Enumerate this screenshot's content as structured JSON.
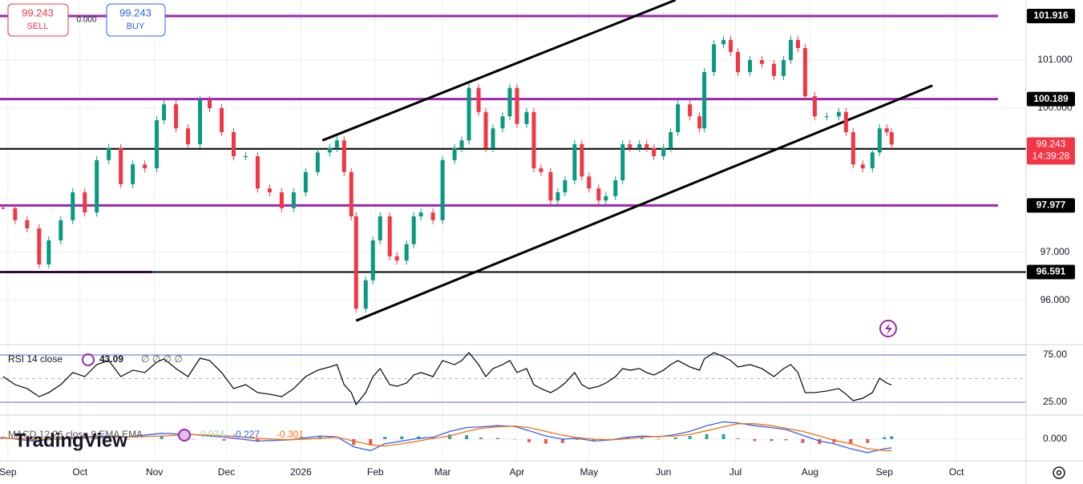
{
  "chart_data": [
    {
      "type": "candlestick",
      "xlim": [
        -3.3,
        424
      ],
      "ylim": [
        95.083,
        102.25
      ],
      "xticks": [
        {
          "value": 0,
          "label": "Sep"
        },
        {
          "value": 30,
          "label": "Oct"
        },
        {
          "value": 61,
          "label": "Nov"
        },
        {
          "value": 91,
          "label": "Dec"
        },
        {
          "value": 122,
          "label": "2026"
        },
        {
          "value": 153,
          "label": "Feb"
        },
        {
          "value": 181,
          "label": "Mar"
        },
        {
          "value": 212,
          "label": "Apr"
        },
        {
          "value": 242,
          "label": "May"
        },
        {
          "value": 273,
          "label": "Jun"
        },
        {
          "value": 303,
          "label": "Jul"
        },
        {
          "value": 334,
          "label": "Aug"
        },
        {
          "value": 365,
          "label": "Sep"
        },
        {
          "value": 395,
          "label": "Oct"
        }
      ],
      "yticks": [
        {
          "value": 101,
          "label": "101.000"
        },
        {
          "value": 100,
          "label": "100.000"
        },
        {
          "value": 97,
          "label": "97.000"
        },
        {
          "value": 96,
          "label": "96.000"
        }
      ],
      "grid": true,
      "x": [
        -2,
        3,
        8,
        13,
        17,
        22,
        27,
        32,
        37,
        42,
        47,
        52,
        57,
        62,
        65,
        70,
        75,
        80,
        84,
        89,
        94,
        99,
        104,
        109,
        114,
        119,
        124,
        129,
        134,
        137,
        140,
        143,
        145,
        149,
        152,
        155,
        159,
        162,
        166,
        169,
        172,
        177,
        181,
        186,
        189,
        192,
        196,
        199,
        202,
        206,
        209,
        212,
        216,
        219,
        222,
        226,
        229,
        232,
        236,
        239,
        242,
        246,
        249,
        253,
        256,
        259,
        263,
        266,
        269,
        273,
        276,
        279,
        284,
        288,
        290,
        294,
        298,
        301,
        304,
        309,
        314,
        319,
        323,
        326,
        329,
        332,
        336,
        341,
        346,
        349,
        352,
        356,
        360,
        363,
        366,
        368
      ],
      "series": [
        {
          "up_color": "#089981",
          "down_color": "#f23645",
          "values": [
            97.92,
            97.67,
            97.5,
            96.75,
            97.25,
            97.67,
            98.25,
            97.83,
            98.92,
            99.17,
            98.42,
            98.83,
            98.75,
            99.75,
            100.08,
            99.58,
            99.25,
            100.17,
            100.0,
            99.5,
            99.0,
            99.0,
            98.33,
            98.25,
            97.92,
            98.25,
            98.67,
            99.08,
            99.17,
            99.33,
            98.67,
            97.75,
            95.83,
            96.42,
            97.25,
            97.75,
            96.92,
            96.83,
            97.17,
            97.75,
            97.83,
            97.67,
            98.92,
            99.17,
            99.33,
            100.42,
            99.92,
            99.17,
            99.58,
            99.83,
            100.42,
            99.67,
            99.92,
            98.75,
            98.67,
            98.08,
            98.25,
            98.5,
            99.25,
            98.58,
            98.33,
            98.08,
            98.17,
            98.5,
            99.25,
            99.17,
            99.25,
            99.17,
            99.0,
            99.17,
            99.5,
            100.08,
            99.83,
            99.58,
            100.75,
            101.33,
            101.42,
            101.17,
            100.75,
            101.0,
            100.92,
            100.67,
            101.0,
            101.42,
            101.25,
            100.25,
            99.83,
            99.83,
            99.92,
            99.5,
            98.83,
            98.75,
            99.08,
            99.58,
            99.5,
            99.243
          ]
        }
      ],
      "last_price_color": "#f23645",
      "countdown": "14:39:28",
      "levels": [
        {
          "value": 101.916,
          "color": "#9c27b0"
        },
        {
          "value": 100.189,
          "color": "#9c27b0"
        },
        {
          "value": 97.977,
          "color": "#9c27b0"
        },
        {
          "value": 96.591,
          "color": "#9c27b0",
          "x": [
            -3.3,
            60
          ]
        },
        {
          "value": 99.153,
          "color": "#000000"
        },
        {
          "value": 96.591,
          "color": "#000000"
        }
      ],
      "trend_lines": [
        {
          "x": [
            131,
            278
          ],
          "y": [
            99.33,
            102.25
          ]
        },
        {
          "x": [
            145,
            385
          ],
          "y": [
            95.58,
            100.47
          ]
        }
      ],
      "trade_widget": {
        "sell_price": 99.243,
        "sell": "SELL",
        "spread": "0.000",
        "buy_price": 99.243,
        "buy": "BUY"
      }
    },
    {
      "type": "line",
      "title": "RSI 14 close",
      "extra": "∅ ∅ ∅ ∅",
      "ylim": [
        11.4,
        86
      ],
      "yticks": [
        {
          "value": 75,
          "label": "75.00"
        },
        {
          "value": 25,
          "label": "25.00"
        }
      ],
      "midline": 50,
      "band_color": "#5b6bd6",
      "series": [
        {
          "color": "#000000",
          "values": [
            52.1,
            43.6,
            39.4,
            30.9,
            35.2,
            43.6,
            56.4,
            52.1,
            64.8,
            69.1,
            52.1,
            58.9,
            56.4,
            67.4,
            70.8,
            60.6,
            52.1,
            71.6,
            69.1,
            56.4,
            39.4,
            43.6,
            35.2,
            33.5,
            30.9,
            39.4,
            52.1,
            58.9,
            62.3,
            64.8,
            43.6,
            35.2,
            22.5,
            35.2,
            52.1,
            60.6,
            43.6,
            41.9,
            45.3,
            53.8,
            56.4,
            52.1,
            69.1,
            64.8,
            69.1,
            77.5,
            64.8,
            52.1,
            60.6,
            64.8,
            69.1,
            56.4,
            60.6,
            43.6,
            39.4,
            35.2,
            39.4,
            45.3,
            56.4,
            43.6,
            39.4,
            41.9,
            45.3,
            52.1,
            60.6,
            58.9,
            60.6,
            56.4,
            53.8,
            58.9,
            64.8,
            69.1,
            62.3,
            58.9,
            70.8,
            77.5,
            73.3,
            69.1,
            62.3,
            64.8,
            60.6,
            52.1,
            60.6,
            64.8,
            56.4,
            35.2,
            35.2,
            36.9,
            39.4,
            33.5,
            26.7,
            29.2,
            35.2,
            50.4,
            45.3,
            43.09
          ]
        }
      ]
    },
    {
      "type": "macd",
      "title": "MACD 12 26 close 9 EMA EMA",
      "logo": "TradingView",
      "ylim": [
        -0.5625,
        0.625
      ],
      "yticks": [
        {
          "value": 0,
          "label": "0.000"
        }
      ],
      "x": [
        -3,
        10,
        23,
        37,
        50,
        64,
        77,
        90,
        104,
        117,
        130,
        137,
        144,
        151,
        157,
        164,
        171,
        177,
        184,
        191,
        197,
        204,
        211,
        217,
        224,
        231,
        237,
        244,
        251,
        258,
        264,
        271,
        278,
        284,
        291,
        298,
        304,
        311,
        318,
        324,
        331,
        338,
        344,
        351,
        358,
        365,
        368
      ],
      "histogram": {
        "up_color": "#26a69a",
        "down_color": "#ef5350",
        "values": [
          0.02,
          -0.05,
          0.02,
          0.04,
          0,
          0.07,
          0,
          -0.04,
          -0.07,
          0,
          0.06,
          0.01,
          -0.15,
          -0.15,
          0.06,
          0.07,
          0.07,
          0.03,
          0.12,
          0.1,
          0.04,
          0.03,
          -0.01,
          -0.08,
          -0.12,
          -0.1,
          -0.02,
          -0.05,
          0,
          0.04,
          0.03,
          -0.01,
          0.04,
          0.08,
          0.13,
          0.13,
          0.02,
          -0.05,
          -0.05,
          -0.03,
          -0.1,
          -0.13,
          -0.09,
          -0.13,
          -0.1,
          0.05,
          0.074
        ]
      },
      "series": [
        {
          "color": "#2962ff",
          "values": [
            0.05,
            -0.05,
            0.02,
            0.08,
            0.06,
            0.15,
            0.12,
            0.05,
            -0.05,
            -0.02,
            0.08,
            0.06,
            -0.2,
            -0.3,
            -0.12,
            -0.05,
            0.02,
            0.05,
            0.2,
            0.3,
            0.32,
            0.35,
            0.33,
            0.22,
            0.08,
            0,
            0.02,
            -0.05,
            -0.02,
            0.05,
            0.08,
            0.06,
            0.12,
            0.2,
            0.35,
            0.45,
            0.42,
            0.35,
            0.3,
            0.25,
            0.1,
            -0.05,
            -0.12,
            -0.25,
            -0.35,
            -0.25,
            -0.227
          ]
        },
        {
          "color": "#ff6d00",
          "values": [
            0.03,
            0,
            0,
            0.04,
            0.06,
            0.08,
            0.12,
            0.09,
            0.02,
            -0.02,
            0.02,
            0.05,
            -0.05,
            -0.15,
            -0.18,
            -0.12,
            -0.05,
            0.02,
            0.08,
            0.2,
            0.28,
            0.32,
            0.34,
            0.3,
            0.2,
            0.1,
            0.04,
            0,
            -0.02,
            0.01,
            0.05,
            0.07,
            0.08,
            0.12,
            0.22,
            0.32,
            0.4,
            0.4,
            0.35,
            0.28,
            0.2,
            0.08,
            -0.03,
            -0.12,
            -0.25,
            -0.3,
            -0.301
          ]
        }
      ]
    }
  ]
}
